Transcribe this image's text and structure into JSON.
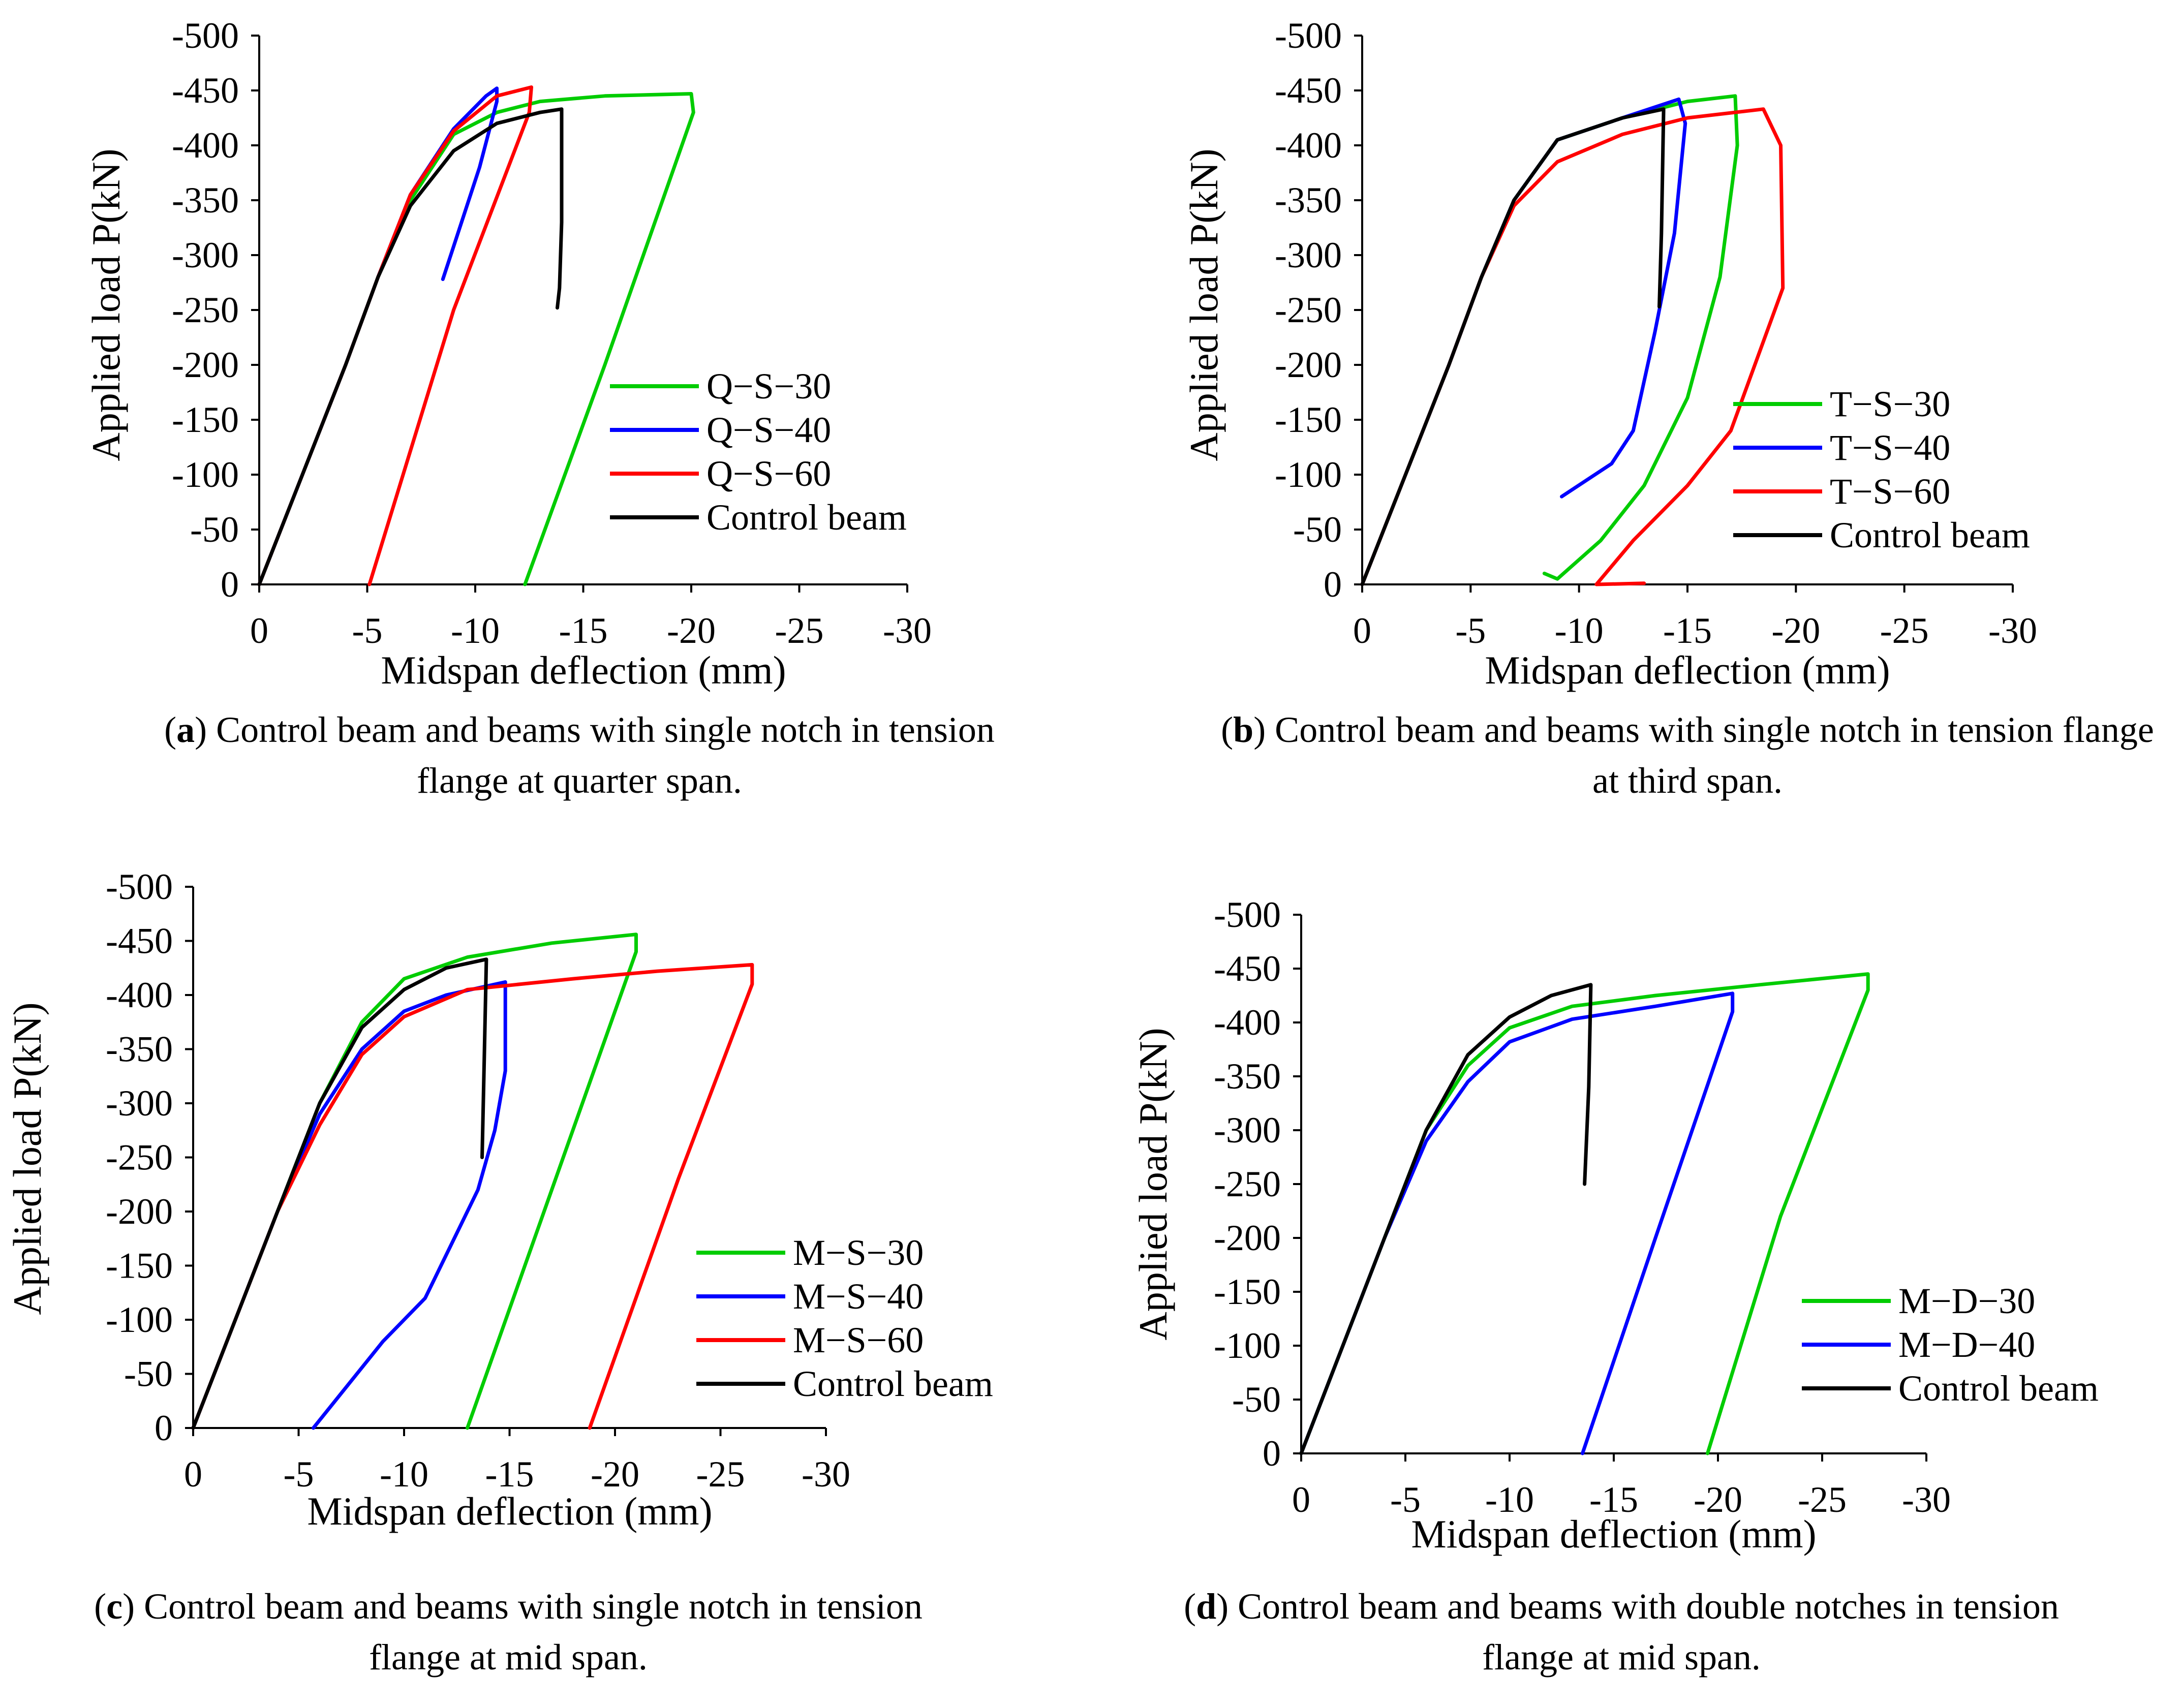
{
  "chart_data": [
    {
      "id": "a",
      "type": "line",
      "xlabel": "Midspan deflection (mm)",
      "ylabel": "Applied load  P(kN)",
      "x_ticks": [
        "0",
        "-5",
        "-10",
        "-15",
        "-20",
        "-25",
        "-30"
      ],
      "y_ticks": [
        "0",
        "-50",
        "-100",
        "-150",
        "-200",
        "-250",
        "-300",
        "-350",
        "-400",
        "-450",
        "-500"
      ],
      "xlim": [
        0,
        -30
      ],
      "ylim": [
        0,
        -500
      ],
      "caption": {
        "letter": "a",
        "line1_after_letter": " Control beam and beams with single notch in tension",
        "line2": "flange at quarter span."
      },
      "legend": [
        "Q−S−30",
        "Q−S−40",
        "Q−S−60",
        "Control beam"
      ],
      "series": [
        {
          "name": "Q−S−30",
          "color": "#00cc00",
          "points": [
            [
              0,
              0
            ],
            [
              -2,
              -100
            ],
            [
              -4,
              -200
            ],
            [
              -5.5,
              -280
            ],
            [
              -7,
              -350
            ],
            [
              -9,
              -410
            ],
            [
              -11,
              -430
            ],
            [
              -13,
              -440
            ],
            [
              -16,
              -445
            ],
            [
              -20,
              -447
            ],
            [
              -20.1,
              -430
            ],
            [
              -16,
              -200
            ],
            [
              -12.3,
              0
            ]
          ]
        },
        {
          "name": "Q−S−40",
          "color": "#0000ff",
          "points": [
            [
              0,
              0
            ],
            [
              -2,
              -100
            ],
            [
              -4,
              -200
            ],
            [
              -5.5,
              -280
            ],
            [
              -7,
              -355
            ],
            [
              -9,
              -415
            ],
            [
              -10.5,
              -445
            ],
            [
              -11,
              -452
            ],
            [
              -11,
              -440
            ],
            [
              -10.2,
              -380
            ],
            [
              -8.5,
              -278
            ]
          ]
        },
        {
          "name": "Q−S−60",
          "color": "#ff0000",
          "points": [
            [
              0,
              0
            ],
            [
              -2,
              -100
            ],
            [
              -4,
              -200
            ],
            [
              -5.5,
              -280
            ],
            [
              -7,
              -355
            ],
            [
              -9,
              -413
            ],
            [
              -11,
              -445
            ],
            [
              -12.6,
              -453
            ],
            [
              -12.5,
              -430
            ],
            [
              -9,
              -250
            ],
            [
              -5.1,
              0
            ]
          ]
        },
        {
          "name": "Control beam",
          "color": "#000000",
          "points": [
            [
              0,
              0
            ],
            [
              -2,
              -100
            ],
            [
              -4,
              -200
            ],
            [
              -5.5,
              -280
            ],
            [
              -7,
              -345
            ],
            [
              -9,
              -395
            ],
            [
              -11,
              -420
            ],
            [
              -13,
              -430
            ],
            [
              -14,
              -433
            ],
            [
              -14,
              -330
            ],
            [
              -13.9,
              -270
            ],
            [
              -13.8,
              -252
            ]
          ]
        }
      ]
    },
    {
      "id": "b",
      "type": "line",
      "xlabel": "Midspan deflection (mm)",
      "ylabel": "Applied load  P(kN)",
      "x_ticks": [
        "0",
        "-5",
        "-10",
        "-15",
        "-20",
        "-25",
        "-30"
      ],
      "y_ticks": [
        "0",
        "-50",
        "-100",
        "-150",
        "-200",
        "-250",
        "-300",
        "-350",
        "-400",
        "-450",
        "-500"
      ],
      "xlim": [
        0,
        -30
      ],
      "ylim": [
        0,
        -500
      ],
      "caption": {
        "letter": "b",
        "line1_after_letter": " Control beam and beams with single notch in tension flange",
        "line2": "at third span."
      },
      "legend": [
        "T−S−30",
        "T−S−40",
        "T−S−60",
        "Control beam"
      ],
      "series": [
        {
          "name": "T−S−30",
          "color": "#00cc00",
          "points": [
            [
              0,
              0
            ],
            [
              -2,
              -100
            ],
            [
              -4,
              -200
            ],
            [
              -5.5,
              -280
            ],
            [
              -7,
              -350
            ],
            [
              -9,
              -405
            ],
            [
              -12,
              -425
            ],
            [
              -15,
              -440
            ],
            [
              -17.2,
              -445
            ],
            [
              -17.3,
              -400
            ],
            [
              -16.5,
              -280
            ],
            [
              -15,
              -170
            ],
            [
              -13,
              -90
            ],
            [
              -11,
              -40
            ],
            [
              -9,
              -5
            ],
            [
              -8.4,
              -10
            ],
            [
              -9,
              -5
            ]
          ]
        },
        {
          "name": "T−S−40",
          "color": "#0000ff",
          "points": [
            [
              0,
              0
            ],
            [
              -2,
              -100
            ],
            [
              -4,
              -200
            ],
            [
              -5.5,
              -280
            ],
            [
              -7,
              -350
            ],
            [
              -9,
              -405
            ],
            [
              -12,
              -425
            ],
            [
              -14.6,
              -442
            ],
            [
              -14.9,
              -420
            ],
            [
              -14.4,
              -320
            ],
            [
              -13.5,
              -230
            ],
            [
              -12.5,
              -140
            ],
            [
              -11.5,
              -110
            ],
            [
              -9.2,
              -80
            ]
          ]
        },
        {
          "name": "T−S−60",
          "color": "#ff0000",
          "points": [
            [
              0,
              0
            ],
            [
              -2,
              -100
            ],
            [
              -4,
              -200
            ],
            [
              -5.5,
              -280
            ],
            [
              -7,
              -345
            ],
            [
              -9,
              -385
            ],
            [
              -12,
              -410
            ],
            [
              -15,
              -425
            ],
            [
              -18.5,
              -433
            ],
            [
              -19.3,
              -400
            ],
            [
              -19.4,
              -270
            ],
            [
              -17,
              -140
            ],
            [
              -15,
              -90
            ],
            [
              -12.5,
              -40
            ],
            [
              -10.8,
              0
            ],
            [
              -13,
              -1
            ]
          ]
        },
        {
          "name": "Control beam",
          "color": "#000000",
          "points": [
            [
              0,
              0
            ],
            [
              -2,
              -100
            ],
            [
              -4,
              -200
            ],
            [
              -5.5,
              -280
            ],
            [
              -7,
              -350
            ],
            [
              -9,
              -405
            ],
            [
              -12,
              -425
            ],
            [
              -13.9,
              -433
            ],
            [
              -13.8,
              -320
            ],
            [
              -13.7,
              -253
            ]
          ]
        }
      ]
    },
    {
      "id": "c",
      "type": "line",
      "xlabel": "Midspan deflection (mm)",
      "ylabel": "Applied load  P(kN)",
      "x_ticks": [
        "0",
        "-5",
        "-10",
        "-15",
        "-20",
        "-25",
        "-30"
      ],
      "y_ticks": [
        "0",
        "-50",
        "-100",
        "-150",
        "-200",
        "-250",
        "-300",
        "-350",
        "-400",
        "-450",
        "-500"
      ],
      "xlim": [
        0,
        -30
      ],
      "ylim": [
        0,
        -500
      ],
      "caption": {
        "letter": "c",
        "line1_after_letter": " Control beam and beams with single notch in tension",
        "line2": "flange at mid span."
      },
      "legend": [
        "M−S−30",
        "M−S−40",
        "M−S−60",
        "Control beam"
      ],
      "series": [
        {
          "name": "M−S−30",
          "color": "#00cc00",
          "points": [
            [
              0,
              0
            ],
            [
              -2,
              -100
            ],
            [
              -4,
              -200
            ],
            [
              -6,
              -300
            ],
            [
              -8,
              -375
            ],
            [
              -10,
              -415
            ],
            [
              -13,
              -435
            ],
            [
              -17,
              -448
            ],
            [
              -21,
              -456
            ],
            [
              -21,
              -440
            ],
            [
              -17,
              -220
            ],
            [
              -13,
              0
            ]
          ]
        },
        {
          "name": "M−S−40",
          "color": "#0000ff",
          "points": [
            [
              0,
              0
            ],
            [
              -2,
              -100
            ],
            [
              -4,
              -200
            ],
            [
              -6,
              -290
            ],
            [
              -8,
              -350
            ],
            [
              -10,
              -385
            ],
            [
              -12,
              -400
            ],
            [
              -14.8,
              -412
            ],
            [
              -14.8,
              -330
            ],
            [
              -14.3,
              -275
            ],
            [
              -13.5,
              -220
            ],
            [
              -12,
              -160
            ],
            [
              -11,
              -120
            ],
            [
              -9,
              -80
            ],
            [
              -5.7,
              0
            ]
          ]
        },
        {
          "name": "M−S−60",
          "color": "#ff0000",
          "points": [
            [
              0,
              0
            ],
            [
              -2,
              -100
            ],
            [
              -4,
              -200
            ],
            [
              -6,
              -280
            ],
            [
              -8,
              -345
            ],
            [
              -10,
              -380
            ],
            [
              -13,
              -405
            ],
            [
              -18,
              -415
            ],
            [
              -22,
              -422
            ],
            [
              -26.5,
              -428
            ],
            [
              -26.5,
              -410
            ],
            [
              -23,
              -230
            ],
            [
              -18.8,
              0
            ]
          ]
        },
        {
          "name": "Control beam",
          "color": "#000000",
          "points": [
            [
              0,
              0
            ],
            [
              -2,
              -100
            ],
            [
              -4,
              -200
            ],
            [
              -6,
              -300
            ],
            [
              -8,
              -370
            ],
            [
              -10,
              -405
            ],
            [
              -12,
              -425
            ],
            [
              -13.9,
              -433
            ],
            [
              -13.8,
              -340
            ],
            [
              -13.7,
              -250
            ]
          ]
        }
      ]
    },
    {
      "id": "d",
      "type": "line",
      "xlabel": "Midspan deflection (mm)",
      "ylabel": "Applied load  P(kN)",
      "x_ticks": [
        "0",
        "-5",
        "-10",
        "-15",
        "-20",
        "-25",
        "-30"
      ],
      "y_ticks": [
        "0",
        "-50",
        "-100",
        "-150",
        "-200",
        "-250",
        "-300",
        "-350",
        "-400",
        "-450",
        "-500"
      ],
      "xlim": [
        0,
        -30
      ],
      "ylim": [
        0,
        -500
      ],
      "caption": {
        "letter": "d",
        "line1_after_letter": " Control beam and beams with double notches in tension",
        "line2": "flange at mid span."
      },
      "legend": [
        "M−D−30",
        "M−D−40",
        "Control beam"
      ],
      "series": [
        {
          "name": "M−D−30",
          "color": "#00cc00",
          "points": [
            [
              0,
              0
            ],
            [
              -2,
              -100
            ],
            [
              -4,
              -200
            ],
            [
              -6,
              -300
            ],
            [
              -8,
              -360
            ],
            [
              -10,
              -395
            ],
            [
              -13,
              -415
            ],
            [
              -17,
              -425
            ],
            [
              -22,
              -435
            ],
            [
              -27.2,
              -445
            ],
            [
              -27.2,
              -430
            ],
            [
              -23,
              -220
            ],
            [
              -19.5,
              0
            ]
          ]
        },
        {
          "name": "M−D−40",
          "color": "#0000ff",
          "points": [
            [
              0,
              0
            ],
            [
              -2,
              -100
            ],
            [
              -4,
              -200
            ],
            [
              -6,
              -290
            ],
            [
              -8,
              -345
            ],
            [
              -10,
              -382
            ],
            [
              -13,
              -403
            ],
            [
              -17,
              -415
            ],
            [
              -20.7,
              -427
            ],
            [
              -20.7,
              -410
            ],
            [
              -17,
              -200
            ],
            [
              -13.5,
              0
            ]
          ]
        },
        {
          "name": "Control beam",
          "color": "#000000",
          "points": [
            [
              0,
              0
            ],
            [
              -2,
              -100
            ],
            [
              -4,
              -200
            ],
            [
              -6,
              -300
            ],
            [
              -8,
              -370
            ],
            [
              -10,
              -405
            ],
            [
              -12,
              -425
            ],
            [
              -13.9,
              -435
            ],
            [
              -13.8,
              -340
            ],
            [
              -13.6,
              -250
            ]
          ]
        }
      ]
    }
  ]
}
